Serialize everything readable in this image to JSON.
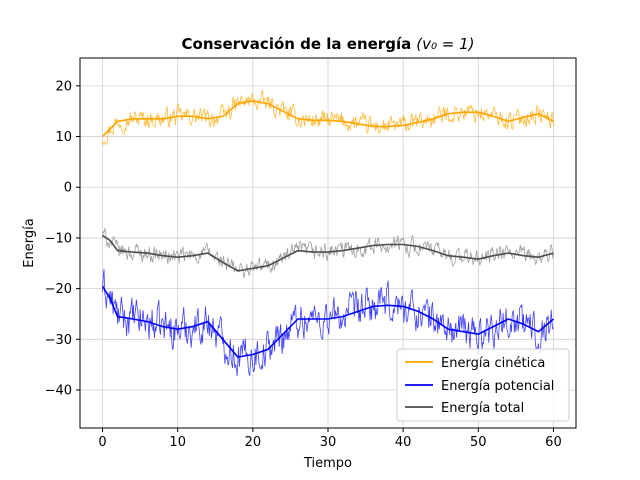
{
  "chart_data": {
    "type": "line",
    "title": "Conservación de la energía (v₀ = 1)",
    "title_bold": "Conservación de la energía",
    "title_math": "(v₀ = 1)",
    "xlabel": "Tiempo",
    "ylabel": "Energía",
    "xlim": [
      -3,
      63
    ],
    "ylim": [
      -47.5,
      25.5
    ],
    "xticks": [
      0,
      10,
      20,
      30,
      40,
      50,
      60
    ],
    "yticks": [
      -40,
      -30,
      -20,
      -10,
      0,
      10,
      20
    ],
    "grid": true,
    "legend_position": "lower-right",
    "series": [
      {
        "name": "Energía cinética",
        "color": "#ffa500",
        "noisy_color": "#ffa500",
        "smooth_x": [
          0,
          1,
          2,
          4,
          6,
          8,
          10,
          12,
          14,
          16,
          18,
          20,
          22,
          24,
          26,
          28,
          30,
          32,
          34,
          36,
          38,
          40,
          42,
          44,
          46,
          48,
          50,
          52,
          54,
          56,
          58,
          60
        ],
        "smooth_y": [
          10,
          11.5,
          13,
          13.5,
          13.5,
          13.5,
          14,
          14,
          13.5,
          14,
          16.5,
          17,
          16.5,
          15,
          13.5,
          13.2,
          13.2,
          13,
          12.5,
          12,
          12,
          12.2,
          12.8,
          13.5,
          14.5,
          14.8,
          14.8,
          14,
          13,
          13.8,
          14.5,
          13
        ]
      },
      {
        "name": "Energía potencial",
        "color": "#0000ff",
        "noisy_color": "#0000ff",
        "smooth_x": [
          0,
          1,
          2,
          4,
          6,
          8,
          10,
          12,
          14,
          16,
          18,
          20,
          22,
          24,
          26,
          28,
          30,
          32,
          34,
          36,
          38,
          40,
          42,
          44,
          46,
          48,
          50,
          52,
          54,
          56,
          58,
          60
        ],
        "smooth_y": [
          -19.5,
          -22,
          -25.5,
          -26,
          -26.5,
          -27.5,
          -28,
          -27.5,
          -26.5,
          -30,
          -33.5,
          -33,
          -32,
          -29,
          -26,
          -26,
          -26,
          -25.5,
          -24.5,
          -23.5,
          -23.3,
          -23.5,
          -24.5,
          -26,
          -28,
          -28.5,
          -29,
          -27.5,
          -26,
          -27,
          -28.5,
          -26
        ]
      },
      {
        "name": "Energía total",
        "color": "#4d4d4d",
        "noisy_color": "#808080",
        "smooth_x": [
          0,
          1,
          2,
          4,
          6,
          8,
          10,
          12,
          14,
          16,
          18,
          20,
          22,
          24,
          26,
          28,
          30,
          32,
          34,
          36,
          38,
          40,
          42,
          44,
          46,
          48,
          50,
          52,
          54,
          56,
          58,
          60
        ],
        "smooth_y": [
          -9.5,
          -10.5,
          -12.5,
          -12.8,
          -13,
          -13.5,
          -13.8,
          -13.5,
          -13,
          -14.8,
          -16.5,
          -16,
          -15.5,
          -14,
          -12.5,
          -12.8,
          -12.8,
          -12.5,
          -12,
          -11.5,
          -11.3,
          -11.3,
          -11.7,
          -12.5,
          -13.5,
          -13.8,
          -14.2,
          -13.5,
          -13,
          -13.5,
          -13.8,
          -13
        ]
      }
    ]
  }
}
